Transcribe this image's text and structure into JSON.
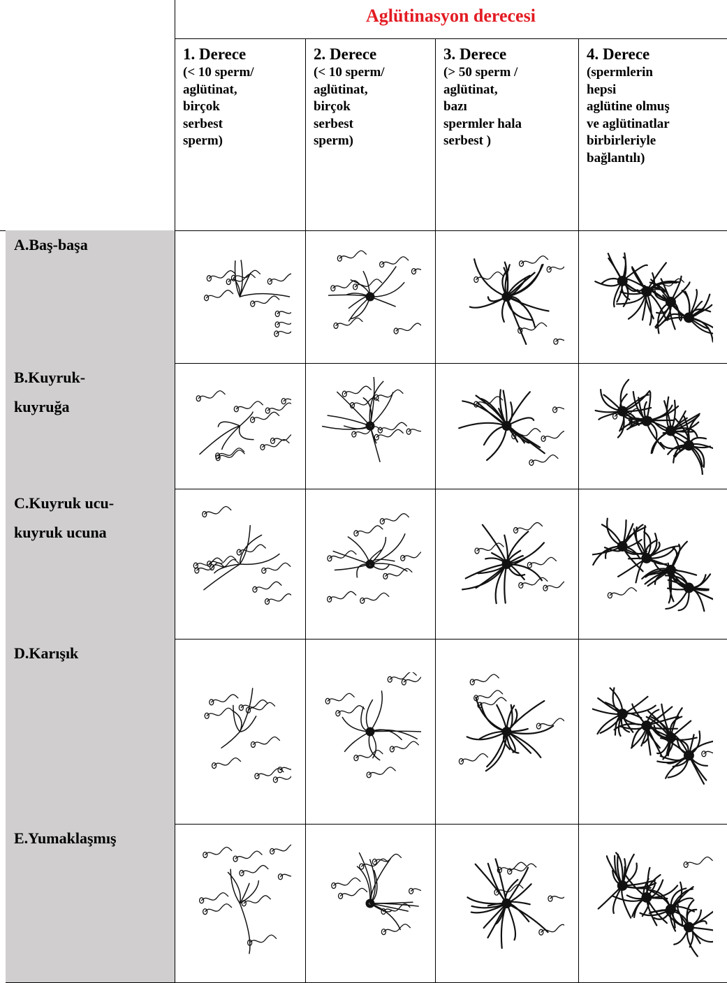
{
  "table": {
    "caption": "Aglütinasyon derecesi",
    "columns": [
      {
        "title": "1. Derece",
        "lines": [
          "(< 10 sperm/",
          "aglütinat,",
          "birçok",
          "serbest",
          "sperm)"
        ]
      },
      {
        "title": "2. Derece",
        "lines": [
          "(< 10 sperm/",
          "aglütinat,",
          "birçok",
          "serbest",
          "sperm)"
        ]
      },
      {
        "title": "3. Derece",
        "lines": [
          "(> 50 sperm /",
          "aglütinat,",
          "bazı",
          "spermler hala",
          "serbest )"
        ]
      },
      {
        "title": "4. Derece",
        "lines": [
          " (spermlerin",
          "hepsi",
          "aglütine olmuş",
          "ve aglütinatlar",
          "birbirleriyle",
          "bağlantılı)"
        ]
      }
    ],
    "rows": [
      {
        "lines": [
          "A.Baş-başa"
        ]
      },
      {
        "lines": [
          "B.Kuyruk-",
          "kuyruğa"
        ]
      },
      {
        "lines": [
          "C.Kuyruk ucu-",
          "kuyruk ucuna"
        ]
      },
      {
        "lines": [
          "D.Karışık"
        ]
      },
      {
        "lines": [
          "E.Yumaklaşmış"
        ]
      }
    ]
  }
}
